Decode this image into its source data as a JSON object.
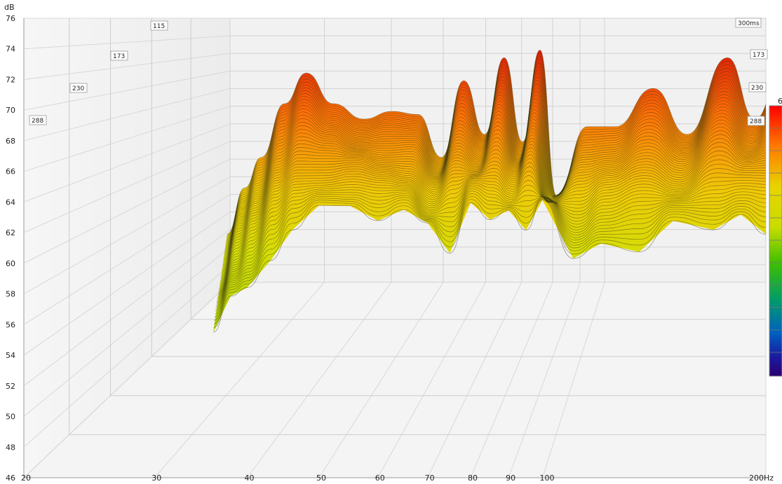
{
  "chart_data": {
    "type": "waterfall-3d",
    "y_unit": "dB",
    "x_unit": "Hz",
    "ylim": [
      46,
      76
    ],
    "y_ticks": [
      76,
      74,
      72,
      70,
      68,
      66,
      64,
      62,
      60,
      58,
      56,
      54,
      52,
      50,
      48,
      46
    ],
    "x_scale": "log",
    "xlim": [
      20,
      200
    ],
    "x_tick_labels": [
      "20",
      "30",
      "40",
      "50",
      "60",
      "70",
      "80",
      "90",
      "100",
      "200Hz"
    ],
    "x_ticks": [
      20,
      30,
      40,
      50,
      60,
      70,
      80,
      90,
      100,
      200
    ],
    "time_labels": [
      "300ms",
      "173",
      "230",
      "288",
      "115",
      "173",
      "230",
      "288"
    ],
    "colorbar_partial_label": "6",
    "colormap": [
      "#ff0000",
      "#ff7a00",
      "#e8d400",
      "#c8dc00",
      "#3fbf00",
      "#009b6a",
      "#0060c0",
      "#1a1aa0",
      "#2a0070"
    ],
    "front_slice": {
      "frequency_hz": [
        36,
        38,
        40,
        43,
        46,
        50,
        55,
        60,
        65,
        70,
        75,
        80,
        85,
        90,
        95,
        100,
        110,
        120,
        135,
        150,
        170,
        185,
        200
      ],
      "level_db": [
        55.5,
        57.5,
        58.5,
        60.5,
        62.0,
        63.5,
        64.0,
        63.0,
        63.2,
        62.5,
        61.0,
        64.0,
        62.5,
        63.5,
        62.5,
        64.0,
        60.0,
        61.5,
        61.0,
        62.5,
        62.0,
        63.5,
        62.0
      ]
    },
    "peak_slice": {
      "frequency_hz": [
        36,
        38,
        40,
        43,
        46,
        50,
        55,
        60,
        65,
        70,
        75,
        80,
        85,
        90,
        95,
        100,
        110,
        120,
        135,
        150,
        170,
        185,
        200
      ],
      "level_db": [
        61.0,
        64.0,
        66.0,
        69.5,
        71.5,
        69.5,
        68.5,
        69.0,
        68.8,
        66.0,
        71.0,
        67.5,
        72.5,
        67.0,
        73.0,
        63.5,
        68.0,
        68.0,
        70.5,
        67.5,
        72.5,
        68.5,
        71.0
      ]
    }
  }
}
